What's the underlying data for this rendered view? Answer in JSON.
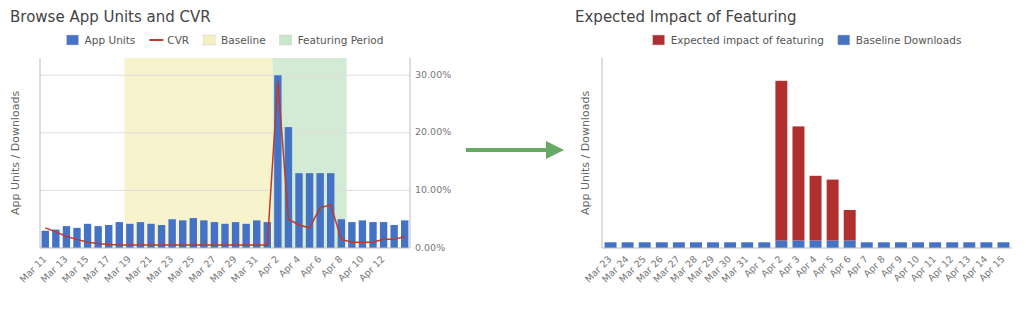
{
  "chart_data": [
    {
      "type": "bar",
      "title": "Browse App Units and CVR",
      "y_label": "App Units / Downloads",
      "categories": [
        "Mar 11",
        null,
        "Mar 13",
        null,
        "Mar 15",
        null,
        "Mar 17",
        null,
        "Mar 19",
        null,
        "Mar 21",
        null,
        "Mar 23",
        null,
        "Mar 25",
        null,
        "Mar 27",
        null,
        "Mar 29",
        null,
        "Mar 31",
        null,
        "Apr 2",
        null,
        "Apr 4",
        null,
        "Apr 6",
        null,
        "Apr 8",
        null,
        "Apr 10",
        null,
        "Apr 12",
        null,
        null
      ],
      "series": [
        {
          "name": "App Units",
          "type": "bar",
          "color": "#4472C4",
          "values": [
            3.0,
            3.2,
            3.8,
            3.5,
            4.2,
            3.8,
            4.0,
            4.5,
            4.2,
            4.5,
            4.2,
            4.0,
            5.0,
            4.8,
            5.2,
            4.8,
            4.5,
            4.2,
            4.5,
            4.2,
            4.8,
            4.5,
            30.0,
            21.0,
            13.0,
            13.0,
            13.0,
            13.0,
            5.0,
            4.5,
            4.8,
            4.5,
            4.5,
            4.0,
            4.8
          ]
        },
        {
          "name": "CVR",
          "type": "line",
          "color": "#C0392B",
          "axis": "y2",
          "values": [
            3.5,
            2.8,
            2.0,
            1.5,
            1.0,
            0.8,
            0.6,
            0.5,
            0.5,
            0.5,
            0.5,
            0.5,
            0.5,
            0.5,
            0.5,
            0.5,
            0.5,
            0.5,
            0.5,
            0.5,
            0.5,
            0.5,
            29.0,
            5.0,
            4.0,
            3.5,
            7.0,
            7.5,
            1.5,
            1.0,
            1.0,
            1.0,
            1.5,
            1.5,
            2.0
          ]
        }
      ],
      "regions": [
        {
          "name": "Baseline",
          "color": "#F5F0C0",
          "start": 8,
          "end": 21
        },
        {
          "name": "Featuring Period",
          "color": "#C8E6C9",
          "start": 22,
          "end": 28
        }
      ],
      "ylim": [
        0,
        33
      ],
      "y2lim": [
        0,
        33
      ],
      "y2ticks": [
        {
          "value": 0,
          "label": "0.00%"
        },
        {
          "value": 10,
          "label": "10.00%"
        },
        {
          "value": 20,
          "label": "20.00%"
        },
        {
          "value": 30,
          "label": "30.00%"
        }
      ],
      "grid": true,
      "legend": "top"
    },
    {
      "type": "bar",
      "title": "Expected Impact of Featuring",
      "y_label": "App Units / Downloads",
      "categories": [
        "Mar 23",
        "Mar 24",
        "Mar 25",
        "Mar 26",
        "Mar 27",
        "Mar 28",
        "Mar 29",
        "Mar 30",
        "Mar 31",
        "Apr 1",
        "Apr 2",
        "Apr 3",
        "Apr 4",
        "Apr 5",
        "Apr 6",
        "Apr 7",
        "Apr 8",
        "Apr 9",
        "Apr 10",
        "Apr 11",
        "Apr 12",
        "Apr 13",
        "Apr 14",
        "Apr 15"
      ],
      "series": [
        {
          "name": "Baseline Downloads",
          "color": "#4472C4",
          "values": [
            1.5,
            1.5,
            1.5,
            1.5,
            1.5,
            1.5,
            1.5,
            1.5,
            1.5,
            1.5,
            2.0,
            2.0,
            2.0,
            2.0,
            2.0,
            1.5,
            1.5,
            1.5,
            1.5,
            1.5,
            1.5,
            1.5,
            1.5,
            1.5
          ]
        },
        {
          "name": "Expected impact of featuring",
          "color": "#B03030",
          "values": [
            0,
            0,
            0,
            0,
            0,
            0,
            0,
            0,
            0,
            0,
            42,
            30,
            17,
            16,
            8,
            0,
            0,
            0,
            0,
            0,
            0,
            0,
            0,
            0
          ]
        }
      ],
      "stacked": true,
      "ylim": [
        0,
        50
      ],
      "tick_labels": "x",
      "legend": "top"
    }
  ]
}
